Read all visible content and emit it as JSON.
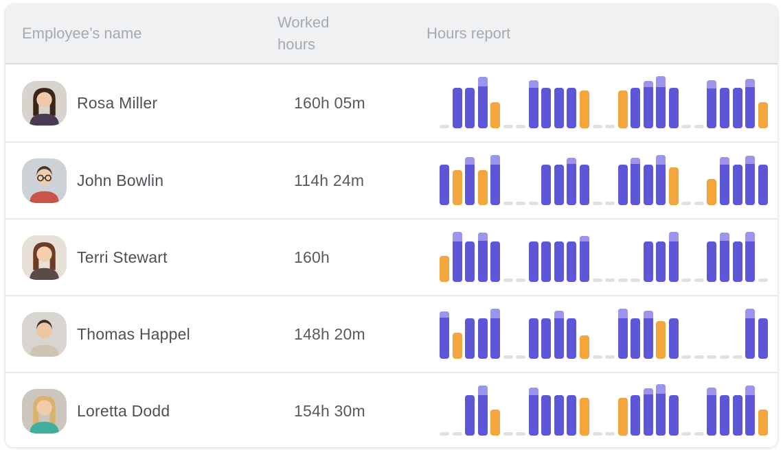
{
  "theme": {
    "header_bg": "#eff1f3",
    "header_text": "#a5aaaf",
    "body_text": "#4d5156",
    "separator": "#e5e7ea",
    "work_bar_color": "#5d57d8",
    "overtime_cap_color": "#9b96ec",
    "special_bar_color": "#f3a63b",
    "day_off_dash_color": "#dee0e2"
  },
  "table": {
    "columns": [
      "Employee’s name",
      "Worked hours",
      "Hours report"
    ],
    "slot_format": "[kind(work|special|off), height_pct_of_chart, overtime_cap_pct]",
    "rows": [
      {
        "name": "Rosa Miller",
        "worked_hours": "160h 05m",
        "avatar": {
          "bg": "#d8d3cd",
          "hair": "#3a2619",
          "skin": "#f0c9aa",
          "shirt": "#4a3a52",
          "long_hair": true,
          "glasses": false
        },
        "report": {
          "type": "bar",
          "slots": [
            [
              "off",
              0,
              0
            ],
            [
              "work",
              76,
              0
            ],
            [
              "work",
              76,
              0
            ],
            [
              "work",
              96,
              18
            ],
            [
              "special",
              49,
              0
            ],
            [
              "off",
              0,
              0
            ],
            [
              "off",
              0,
              0
            ],
            [
              "work",
              90,
              14
            ],
            [
              "work",
              76,
              0
            ],
            [
              "work",
              76,
              0
            ],
            [
              "work",
              76,
              0
            ],
            [
              "special",
              71,
              0
            ],
            [
              "off",
              0,
              0
            ],
            [
              "off",
              0,
              0
            ],
            [
              "special",
              71,
              0
            ],
            [
              "work",
              76,
              0
            ],
            [
              "work",
              88,
              12
            ],
            [
              "work",
              98,
              20
            ],
            [
              "work",
              76,
              0
            ],
            [
              "off",
              0,
              0
            ],
            [
              "off",
              0,
              0
            ],
            [
              "work",
              90,
              16
            ],
            [
              "work",
              76,
              0
            ],
            [
              "work",
              76,
              0
            ],
            [
              "work",
              92,
              16
            ],
            [
              "special",
              49,
              0
            ]
          ]
        }
      },
      {
        "name": "John Bowlin",
        "worked_hours": "114h 24m",
        "avatar": {
          "bg": "#ccd2d5",
          "hair": "#4a3322",
          "skin": "#f2cdab",
          "shirt": "#c9554a",
          "long_hair": false,
          "glasses": true
        },
        "report": {
          "type": "bar",
          "slots": [
            [
              "work",
              76,
              0
            ],
            [
              "special",
              65,
              0
            ],
            [
              "work",
              90,
              14
            ],
            [
              "special",
              65,
              0
            ],
            [
              "work",
              94,
              18
            ],
            [
              "off",
              0,
              0
            ],
            [
              "off",
              0,
              0
            ],
            [
              "off",
              0,
              0
            ],
            [
              "work",
              76,
              0
            ],
            [
              "work",
              76,
              0
            ],
            [
              "work",
              88,
              12
            ],
            [
              "work",
              76,
              0
            ],
            [
              "off",
              0,
              0
            ],
            [
              "off",
              0,
              0
            ],
            [
              "work",
              76,
              0
            ],
            [
              "work",
              88,
              12
            ],
            [
              "work",
              76,
              0
            ],
            [
              "work",
              94,
              18
            ],
            [
              "special",
              71,
              0
            ],
            [
              "off",
              0,
              0
            ],
            [
              "off",
              0,
              0
            ],
            [
              "special",
              49,
              0
            ],
            [
              "work",
              90,
              14
            ],
            [
              "work",
              76,
              0
            ],
            [
              "work",
              92,
              16
            ],
            [
              "work",
              76,
              0
            ]
          ]
        }
      },
      {
        "name": "Terri Stewart",
        "worked_hours": "160h",
        "avatar": {
          "bg": "#e7e0d6",
          "hair": "#6e3b24",
          "skin": "#f4cfae",
          "shirt": "#5a4a4a",
          "long_hair": true,
          "glasses": false
        },
        "report": {
          "type": "bar",
          "slots": [
            [
              "special",
              49,
              0
            ],
            [
              "work",
              94,
              18
            ],
            [
              "work",
              76,
              0
            ],
            [
              "work",
              92,
              16
            ],
            [
              "work",
              76,
              0
            ],
            [
              "off",
              0,
              0
            ],
            [
              "off",
              0,
              0
            ],
            [
              "work",
              76,
              0
            ],
            [
              "work",
              76,
              0
            ],
            [
              "work",
              76,
              0
            ],
            [
              "work",
              76,
              0
            ],
            [
              "work",
              86,
              10
            ],
            [
              "off",
              0,
              0
            ],
            [
              "off",
              0,
              0
            ],
            [
              "off",
              0,
              0
            ],
            [
              "off",
              0,
              0
            ],
            [
              "work",
              76,
              0
            ],
            [
              "work",
              76,
              0
            ],
            [
              "work",
              94,
              18
            ],
            [
              "off",
              0,
              0
            ],
            [
              "off",
              0,
              0
            ],
            [
              "work",
              76,
              0
            ],
            [
              "work",
              92,
              16
            ],
            [
              "work",
              76,
              0
            ],
            [
              "work",
              94,
              18
            ],
            [
              "off",
              0,
              0
            ]
          ]
        }
      },
      {
        "name": "Thomas Happel",
        "worked_hours": "148h 20m",
        "avatar": {
          "bg": "#d8d4cf",
          "hair": "#3e2f23",
          "skin": "#edc6a4",
          "shirt": "#cfc4b2",
          "long_hair": false,
          "glasses": false
        },
        "report": {
          "type": "bar",
          "slots": [
            [
              "work",
              88,
              12
            ],
            [
              "special",
              49,
              0
            ],
            [
              "work",
              76,
              0
            ],
            [
              "work",
              76,
              0
            ],
            [
              "work",
              94,
              18
            ],
            [
              "off",
              0,
              0
            ],
            [
              "off",
              0,
              0
            ],
            [
              "work",
              76,
              0
            ],
            [
              "work",
              76,
              0
            ],
            [
              "work",
              90,
              14
            ],
            [
              "work",
              76,
              0
            ],
            [
              "special",
              43,
              0
            ],
            [
              "off",
              0,
              0
            ],
            [
              "off",
              0,
              0
            ],
            [
              "work",
              94,
              18
            ],
            [
              "work",
              76,
              0
            ],
            [
              "work",
              90,
              14
            ],
            [
              "special",
              71,
              0
            ],
            [
              "work",
              76,
              0
            ],
            [
              "off",
              0,
              0
            ],
            [
              "off",
              0,
              0
            ],
            [
              "off",
              0,
              0
            ],
            [
              "off",
              0,
              0
            ],
            [
              "off",
              0,
              0
            ],
            [
              "work",
              94,
              18
            ],
            [
              "work",
              76,
              0
            ]
          ]
        }
      },
      {
        "name": "Loretta Dodd",
        "worked_hours": "154h 30m",
        "avatar": {
          "bg": "#ccc6bf",
          "hair": "#d9b36a",
          "skin": "#f2cbaa",
          "shirt": "#3fae9e",
          "long_hair": true,
          "glasses": false
        },
        "report": {
          "type": "bar",
          "slots": [
            [
              "off",
              0,
              0
            ],
            [
              "off",
              0,
              0
            ],
            [
              "work",
              76,
              0
            ],
            [
              "work",
              94,
              18
            ],
            [
              "special",
              49,
              0
            ],
            [
              "off",
              0,
              0
            ],
            [
              "off",
              0,
              0
            ],
            [
              "work",
              90,
              14
            ],
            [
              "work",
              76,
              0
            ],
            [
              "work",
              76,
              0
            ],
            [
              "work",
              76,
              0
            ],
            [
              "special",
              71,
              0
            ],
            [
              "off",
              0,
              0
            ],
            [
              "off",
              0,
              0
            ],
            [
              "special",
              71,
              0
            ],
            [
              "work",
              76,
              0
            ],
            [
              "work",
              88,
              12
            ],
            [
              "work",
              96,
              18
            ],
            [
              "work",
              76,
              0
            ],
            [
              "off",
              0,
              0
            ],
            [
              "off",
              0,
              0
            ],
            [
              "work",
              90,
              14
            ],
            [
              "work",
              76,
              0
            ],
            [
              "work",
              76,
              0
            ],
            [
              "work",
              94,
              18
            ],
            [
              "special",
              49,
              0
            ]
          ]
        }
      }
    ]
  }
}
